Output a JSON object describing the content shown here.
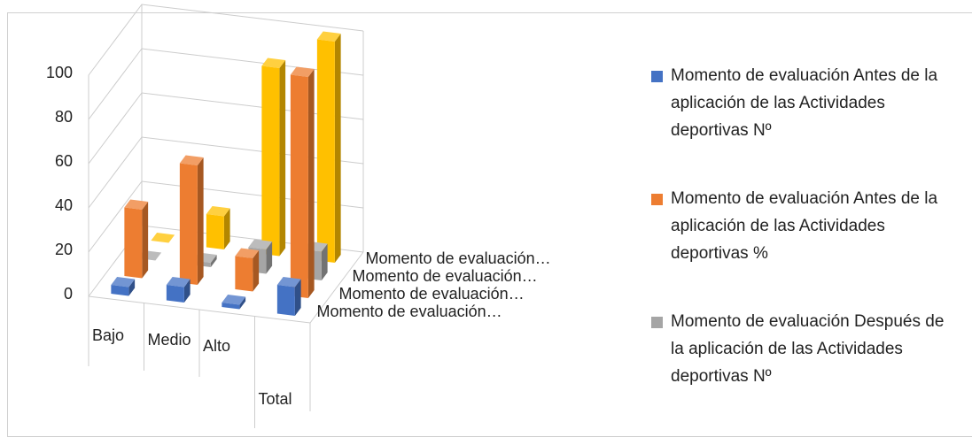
{
  "chart_data": {
    "type": "bar3d",
    "categories": [
      "Bajo",
      "Medio",
      "Alto",
      "Total"
    ],
    "depth_labels": [
      "Momento de evaluación…",
      "Momento de evaluación…",
      "Momento de evaluación…",
      "Momento de evaluación…"
    ],
    "series": [
      {
        "name": "Momento de evaluación Antes de la aplicación de las Actividades deportivas  Nº",
        "color": "#4472c4",
        "values": [
          4,
          7,
          2,
          13
        ]
      },
      {
        "name": "Momento de evaluación Antes de la aplicación de las Actividades deportivas  %",
        "color": "#ed7d31",
        "values": [
          31,
          54,
          15,
          100
        ]
      },
      {
        "name": "Momento de evaluación Después de la aplicación de las Actividades deportivas Nº",
        "color": "#a5a5a5",
        "values": [
          0,
          2,
          11,
          13
        ]
      },
      {
        "color": "#ffc000",
        "values": [
          0,
          15,
          85,
          100
        ]
      }
    ],
    "ylim": [
      0,
      100
    ],
    "yticks": [
      0,
      20,
      40,
      60,
      80,
      100
    ],
    "grid": true
  }
}
